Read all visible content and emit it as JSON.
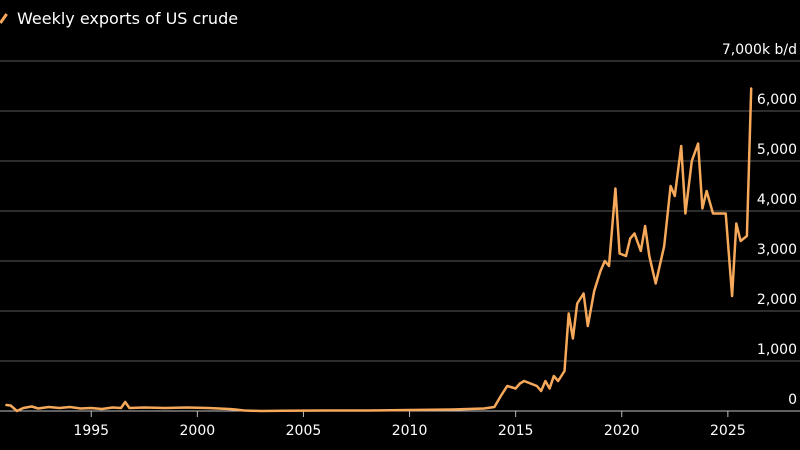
{
  "chart_data": {
    "type": "line",
    "legend": "top-left",
    "grid": true,
    "unit": "k b/d",
    "ylim": [
      0,
      7000
    ],
    "xlim": [
      1990.7,
      2028.4
    ],
    "y_ticks": [
      0,
      1000,
      2000,
      3000,
      4000,
      5000,
      6000,
      7000
    ],
    "y_tick_labels": [
      "0",
      "1,000",
      "2,000",
      "3,000",
      "4,000",
      "5,000",
      "6,000",
      "7,000k b/d"
    ],
    "x_ticks": [
      1995,
      2000,
      2005,
      2010,
      2015,
      2020,
      2025
    ],
    "x_tick_labels": [
      "1995",
      "2000",
      "2005",
      "2010",
      "2015",
      "2020",
      "2025"
    ],
    "series": [
      {
        "name": "Weekly exports of US crude",
        "color": "#f7a95b",
        "points": [
          [
            1991.0,
            120
          ],
          [
            1991.2,
            110
          ],
          [
            1991.5,
            0
          ],
          [
            1991.8,
            60
          ],
          [
            1992.2,
            90
          ],
          [
            1992.5,
            50
          ],
          [
            1993.0,
            80
          ],
          [
            1993.5,
            60
          ],
          [
            1994.0,
            80
          ],
          [
            1994.5,
            50
          ],
          [
            1995.0,
            60
          ],
          [
            1995.5,
            40
          ],
          [
            1996.0,
            70
          ],
          [
            1996.4,
            60
          ],
          [
            1996.6,
            180
          ],
          [
            1996.8,
            60
          ],
          [
            1997.5,
            70
          ],
          [
            1998.5,
            60
          ],
          [
            1999.5,
            70
          ],
          [
            2000.5,
            60
          ],
          [
            2001.5,
            40
          ],
          [
            2001.8,
            30
          ],
          [
            2002.2,
            10
          ],
          [
            2003.0,
            0
          ],
          [
            2004.0,
            5
          ],
          [
            2006.0,
            10
          ],
          [
            2008.0,
            10
          ],
          [
            2010.0,
            20
          ],
          [
            2012.0,
            30
          ],
          [
            2013.5,
            50
          ],
          [
            2014.0,
            80
          ],
          [
            2014.3,
            300
          ],
          [
            2014.6,
            500
          ],
          [
            2015.0,
            450
          ],
          [
            2015.2,
            550
          ],
          [
            2015.4,
            600
          ],
          [
            2015.7,
            550
          ],
          [
            2016.0,
            500
          ],
          [
            2016.2,
            400
          ],
          [
            2016.4,
            600
          ],
          [
            2016.6,
            450
          ],
          [
            2016.8,
            700
          ],
          [
            2017.0,
            600
          ],
          [
            2017.3,
            800
          ],
          [
            2017.5,
            1950
          ],
          [
            2017.7,
            1450
          ],
          [
            2017.9,
            2150
          ],
          [
            2018.2,
            2350
          ],
          [
            2018.4,
            1700
          ],
          [
            2018.7,
            2400
          ],
          [
            2019.0,
            2800
          ],
          [
            2019.2,
            3000
          ],
          [
            2019.4,
            2900
          ],
          [
            2019.7,
            4450
          ],
          [
            2019.9,
            3150
          ],
          [
            2020.2,
            3100
          ],
          [
            2020.4,
            3450
          ],
          [
            2020.6,
            3550
          ],
          [
            2020.9,
            3200
          ],
          [
            2021.1,
            3700
          ],
          [
            2021.3,
            3100
          ],
          [
            2021.6,
            2550
          ],
          [
            2022.0,
            3300
          ],
          [
            2022.3,
            4500
          ],
          [
            2022.5,
            4300
          ],
          [
            2022.8,
            5300
          ],
          [
            2023.0,
            3950
          ],
          [
            2023.3,
            5000
          ],
          [
            2023.6,
            5350
          ],
          [
            2023.8,
            4050
          ],
          [
            2024.0,
            4400
          ],
          [
            2024.3,
            3950
          ],
          [
            2024.7,
            3950
          ],
          [
            2024.9,
            3950
          ],
          [
            2025.2,
            2300
          ],
          [
            2025.4,
            3750
          ],
          [
            2025.6,
            3400
          ],
          [
            2025.9,
            3500
          ],
          [
            2026.1,
            6450
          ]
        ]
      }
    ]
  }
}
